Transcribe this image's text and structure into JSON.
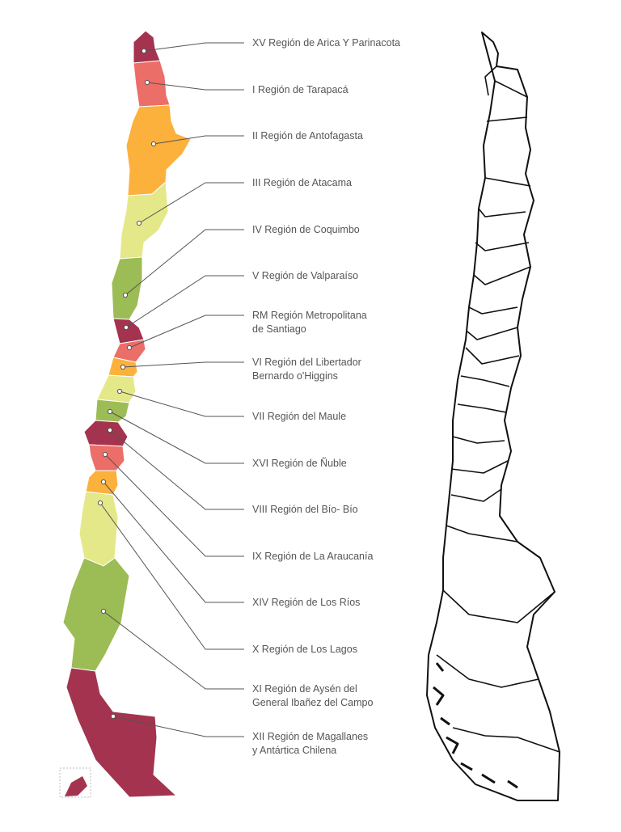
{
  "regions": [
    {
      "id": "xv",
      "lines": [
        "XV Región de Arica Y Parinacota"
      ],
      "color": "#a3334f"
    },
    {
      "id": "i",
      "lines": [
        "I Región de Tarapacá"
      ],
      "color": "#ec6e68"
    },
    {
      "id": "ii",
      "lines": [
        "II Región de Antofagasta"
      ],
      "color": "#fbb13c"
    },
    {
      "id": "iii",
      "lines": [
        "III Región de Atacama"
      ],
      "color": "#e4e889"
    },
    {
      "id": "iv",
      "lines": [
        "IV Región de Coquimbo"
      ],
      "color": "#e4e889"
    },
    {
      "id": "v",
      "lines": [
        "V Región de Valparaíso"
      ],
      "color": "#9cbc55"
    },
    {
      "id": "rm",
      "lines": [
        "RM Región Metropolitana",
        "de Santiago"
      ],
      "color": "#a3334f"
    },
    {
      "id": "vi",
      "lines": [
        "VI Región del Libertador",
        "Bernardo o'Higgins"
      ],
      "color": "#ec6e68"
    },
    {
      "id": "vii",
      "lines": [
        "VII Región del Maule"
      ],
      "color": "#e4e889"
    },
    {
      "id": "xvi",
      "lines": [
        "XVI Región de Ñuble"
      ],
      "color": "#9cbc55"
    },
    {
      "id": "viii",
      "lines": [
        "VIII Región del Bío- Bío"
      ],
      "color": "#a3334f"
    },
    {
      "id": "ix",
      "lines": [
        "IX Región de La Araucanía"
      ],
      "color": "#ec6e68"
    },
    {
      "id": "xiv",
      "lines": [
        "XIV Región de Los Ríos"
      ],
      "color": "#fbb13c"
    },
    {
      "id": "x",
      "lines": [
        "X Región de Los Lagos"
      ],
      "color": "#e4e889"
    },
    {
      "id": "xi",
      "lines": [
        "XI Región de Aysén del",
        "General Ibañez del Campo"
      ],
      "color": "#9cbc55"
    },
    {
      "id": "xii",
      "lines": [
        "XII Región de Magallanes",
        "y Antártica Chilena"
      ],
      "color": "#a3334f"
    }
  ]
}
